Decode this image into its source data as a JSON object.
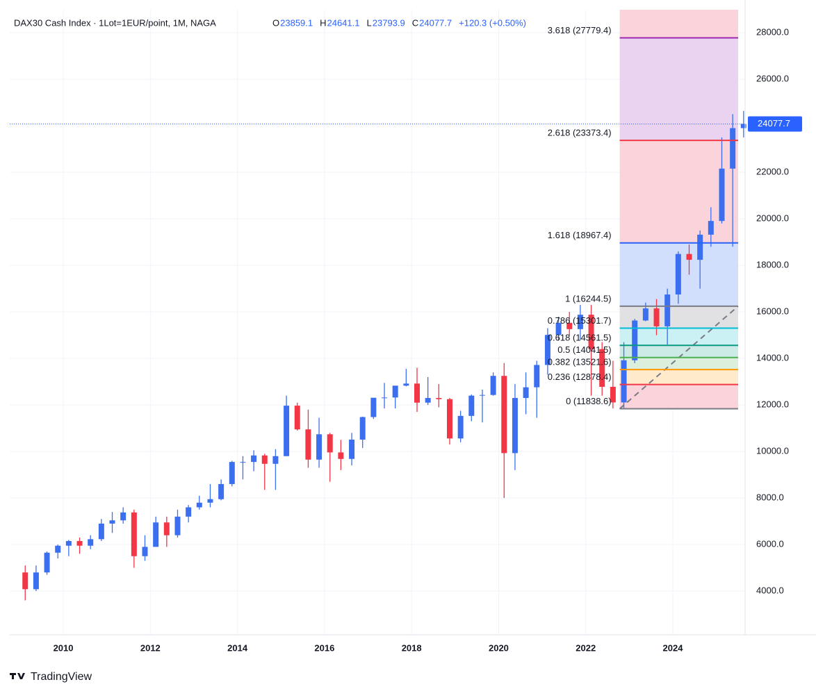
{
  "chart_data": {
    "type": "candlestick",
    "title": "DAX30 Cash Index · 1Lot=1EUR/point, 1M, NAGA",
    "ohlc": [
      {
        "key": "O",
        "value": 23859.1
      },
      {
        "key": "H",
        "value": 24641.1
      },
      {
        "key": "L",
        "value": 23793.9
      },
      {
        "key": "C",
        "value": 24077.7
      }
    ],
    "change": "+120.3 (+0.50%)",
    "xlim": [
      2008.77,
      2025.66
    ],
    "xticks": [
      2010,
      2012,
      2014,
      2016,
      2018,
      2020,
      2022,
      2024
    ],
    "ylim": [
      2120,
      28990
    ],
    "yticks": [
      {
        "value": 4000,
        "label": "4000.0"
      },
      {
        "value": 6000,
        "label": "6000.0"
      },
      {
        "value": 8000,
        "label": "8000.0"
      },
      {
        "value": 10000,
        "label": "10000.0"
      },
      {
        "value": 12000,
        "label": "12000.0"
      },
      {
        "value": 14000,
        "label": "14000.0"
      },
      {
        "value": 16000,
        "label": "16000.0"
      },
      {
        "value": 18000,
        "label": "18000.0"
      },
      {
        "value": 20000,
        "label": "20000.0"
      },
      {
        "value": 22000,
        "label": "22000.0"
      },
      {
        "value": 24000,
        "label": "24000.0"
      },
      {
        "value": 26000,
        "label": "26000.0"
      },
      {
        "value": 28000,
        "label": "28000.0"
      }
    ],
    "up_color": "#3b6ff0",
    "down_color": "#f23645",
    "candles": [
      {
        "x": 2009.0,
        "o": 4800,
        "h": 5100,
        "l": 3600,
        "c": 4080
      },
      {
        "x": 2009.25,
        "o": 4080,
        "h": 5100,
        "l": 4000,
        "c": 4800
      },
      {
        "x": 2009.5,
        "o": 4800,
        "h": 5700,
        "l": 4700,
        "c": 5650
      },
      {
        "x": 2009.75,
        "o": 5650,
        "h": 6000,
        "l": 5400,
        "c": 5950
      },
      {
        "x": 2010.0,
        "o": 5950,
        "h": 6200,
        "l": 5500,
        "c": 6150
      },
      {
        "x": 2010.25,
        "o": 6150,
        "h": 6300,
        "l": 5600,
        "c": 5950
      },
      {
        "x": 2010.5,
        "o": 5950,
        "h": 6400,
        "l": 5800,
        "c": 6230
      },
      {
        "x": 2010.75,
        "o": 6230,
        "h": 7100,
        "l": 6150,
        "c": 6900
      },
      {
        "x": 2011.0,
        "o": 6900,
        "h": 7400,
        "l": 6500,
        "c": 7040
      },
      {
        "x": 2011.25,
        "o": 7040,
        "h": 7600,
        "l": 6900,
        "c": 7380
      },
      {
        "x": 2011.5,
        "o": 7380,
        "h": 7500,
        "l": 5000,
        "c": 5500
      },
      {
        "x": 2011.75,
        "o": 5500,
        "h": 6400,
        "l": 5300,
        "c": 5900
      },
      {
        "x": 2012.0,
        "o": 5900,
        "h": 7200,
        "l": 5900,
        "c": 6950
      },
      {
        "x": 2012.25,
        "o": 6950,
        "h": 7200,
        "l": 5900,
        "c": 6400
      },
      {
        "x": 2012.5,
        "o": 6400,
        "h": 7500,
        "l": 6300,
        "c": 7200
      },
      {
        "x": 2012.75,
        "o": 7200,
        "h": 7700,
        "l": 6950,
        "c": 7600
      },
      {
        "x": 2013.0,
        "o": 7600,
        "h": 8100,
        "l": 7500,
        "c": 7800
      },
      {
        "x": 2013.25,
        "o": 7800,
        "h": 8600,
        "l": 7600,
        "c": 7950
      },
      {
        "x": 2013.5,
        "o": 7950,
        "h": 8800,
        "l": 7900,
        "c": 8600
      },
      {
        "x": 2013.75,
        "o": 8600,
        "h": 9600,
        "l": 8500,
        "c": 9550
      },
      {
        "x": 2014.0,
        "o": 9550,
        "h": 9800,
        "l": 8800,
        "c": 9550
      },
      {
        "x": 2014.25,
        "o": 9550,
        "h": 10050,
        "l": 9150,
        "c": 9830
      },
      {
        "x": 2014.5,
        "o": 9830,
        "h": 9900,
        "l": 8350,
        "c": 9470
      },
      {
        "x": 2014.75,
        "o": 9470,
        "h": 10100,
        "l": 8350,
        "c": 9800
      },
      {
        "x": 2015.0,
        "o": 9800,
        "h": 12400,
        "l": 9800,
        "c": 11970
      },
      {
        "x": 2015.25,
        "o": 11970,
        "h": 12100,
        "l": 10900,
        "c": 10950
      },
      {
        "x": 2015.5,
        "o": 10950,
        "h": 11800,
        "l": 9300,
        "c": 9650
      },
      {
        "x": 2015.75,
        "o": 9650,
        "h": 11450,
        "l": 9300,
        "c": 10740
      },
      {
        "x": 2016.0,
        "o": 10740,
        "h": 10800,
        "l": 8700,
        "c": 9960
      },
      {
        "x": 2016.25,
        "o": 9960,
        "h": 10500,
        "l": 9200,
        "c": 9680
      },
      {
        "x": 2016.5,
        "o": 9680,
        "h": 10800,
        "l": 9400,
        "c": 10510
      },
      {
        "x": 2016.75,
        "o": 10510,
        "h": 11500,
        "l": 10150,
        "c": 11480
      },
      {
        "x": 2017.0,
        "o": 11480,
        "h": 12300,
        "l": 11400,
        "c": 12310
      },
      {
        "x": 2017.25,
        "o": 12310,
        "h": 12950,
        "l": 11850,
        "c": 12320
      },
      {
        "x": 2017.5,
        "o": 12320,
        "h": 12600,
        "l": 11850,
        "c": 12830
      },
      {
        "x": 2017.75,
        "o": 12830,
        "h": 13550,
        "l": 12800,
        "c": 12920
      },
      {
        "x": 2018.0,
        "o": 12920,
        "h": 13600,
        "l": 11700,
        "c": 12100
      },
      {
        "x": 2018.25,
        "o": 12100,
        "h": 13200,
        "l": 12000,
        "c": 12300
      },
      {
        "x": 2018.5,
        "o": 12300,
        "h": 12900,
        "l": 11900,
        "c": 12250
      },
      {
        "x": 2018.75,
        "o": 12250,
        "h": 12300,
        "l": 10300,
        "c": 10560
      },
      {
        "x": 2019.0,
        "o": 10560,
        "h": 11750,
        "l": 10400,
        "c": 11530
      },
      {
        "x": 2019.25,
        "o": 11530,
        "h": 12450,
        "l": 11300,
        "c": 12400
      },
      {
        "x": 2019.5,
        "o": 12400,
        "h": 12660,
        "l": 11250,
        "c": 12430
      },
      {
        "x": 2019.75,
        "o": 12430,
        "h": 13400,
        "l": 12400,
        "c": 13250
      },
      {
        "x": 2020.0,
        "o": 13250,
        "h": 13800,
        "l": 8000,
        "c": 9930
      },
      {
        "x": 2020.25,
        "o": 9930,
        "h": 12900,
        "l": 9200,
        "c": 12300
      },
      {
        "x": 2020.5,
        "o": 12300,
        "h": 13400,
        "l": 11600,
        "c": 12760
      },
      {
        "x": 2020.75,
        "o": 12760,
        "h": 13900,
        "l": 11450,
        "c": 13720
      },
      {
        "x": 2021.0,
        "o": 13720,
        "h": 15300,
        "l": 13300,
        "c": 15010
      },
      {
        "x": 2021.25,
        "o": 15010,
        "h": 15800,
        "l": 14800,
        "c": 15530
      },
      {
        "x": 2021.5,
        "o": 15530,
        "h": 16000,
        "l": 15000,
        "c": 15260
      },
      {
        "x": 2021.75,
        "o": 15260,
        "h": 16300,
        "l": 14800,
        "c": 15880
      },
      {
        "x": 2022.0,
        "o": 15880,
        "h": 16300,
        "l": 12400,
        "c": 14400
      },
      {
        "x": 2022.25,
        "o": 14400,
        "h": 14700,
        "l": 12400,
        "c": 12780
      },
      {
        "x": 2022.5,
        "o": 12780,
        "h": 13900,
        "l": 11850,
        "c": 12110
      },
      {
        "x": 2022.75,
        "o": 12110,
        "h": 14700,
        "l": 11850,
        "c": 13920
      },
      {
        "x": 2023.0,
        "o": 13920,
        "h": 15700,
        "l": 13800,
        "c": 15630
      },
      {
        "x": 2023.25,
        "o": 15630,
        "h": 16400,
        "l": 15600,
        "c": 16150
      },
      {
        "x": 2023.5,
        "o": 16150,
        "h": 16550,
        "l": 15000,
        "c": 15380
      },
      {
        "x": 2023.75,
        "o": 15380,
        "h": 17000,
        "l": 14600,
        "c": 16750
      },
      {
        "x": 2024.0,
        "o": 16750,
        "h": 18600,
        "l": 16350,
        "c": 18490
      },
      {
        "x": 2024.25,
        "o": 18490,
        "h": 18900,
        "l": 17600,
        "c": 18240
      },
      {
        "x": 2024.5,
        "o": 18240,
        "h": 19500,
        "l": 17000,
        "c": 19320
      },
      {
        "x": 2024.75,
        "o": 19320,
        "h": 20500,
        "l": 18800,
        "c": 19910
      },
      {
        "x": 2025.0,
        "o": 19910,
        "h": 23500,
        "l": 19800,
        "c": 22160
      },
      {
        "x": 2025.25,
        "o": 22160,
        "h": 24500,
        "l": 18800,
        "c": 23900
      },
      {
        "x": 2025.5,
        "o": 23900,
        "h": 24640,
        "l": 23500,
        "c": 24077.7
      }
    ],
    "fib": {
      "x1": 2022.78,
      "x2": 2025.5,
      "top_color": "#fbd3da",
      "levels": [
        {
          "label": "3.618 (27779.4)",
          "value": 27779.4,
          "color": "#9c27b0",
          "fill": "#ead3f0"
        },
        {
          "label": "2.618 (23373.4)",
          "value": 23373.4,
          "color": "#f23645",
          "fill": "#fbd3da"
        },
        {
          "label": "1.618 (18967.4)",
          "value": 18967.4,
          "color": "#2962ff",
          "fill": "#d1defc"
        },
        {
          "label": "1 (16244.5)",
          "value": 16244.5,
          "color": "#787b86",
          "fill": "#e1e1e4"
        },
        {
          "label": "0.786 (15301.7)",
          "value": 15301.7,
          "color": "#00bcd4",
          "fill": "#ccf1f5"
        },
        {
          "label": "0.618 (14561.5)",
          "value": 14561.5,
          "color": "#089981",
          "fill": "#cdebe6"
        },
        {
          "label": "0.5 (14041.5)",
          "value": 14041.5,
          "color": "#4caf50",
          "fill": "#dbefdc"
        },
        {
          "label": "0.382 (13521.6)",
          "value": 13521.6,
          "color": "#ff9800",
          "fill": "#ffeacc"
        },
        {
          "label": "0.236 (12878.4)",
          "value": 12878.4,
          "color": "#f23645",
          "fill": "#fbd3da"
        },
        {
          "label": "0 (11838.6)",
          "value": 11838.6,
          "color": "#787b86"
        }
      ]
    },
    "brand": "TradingView"
  }
}
